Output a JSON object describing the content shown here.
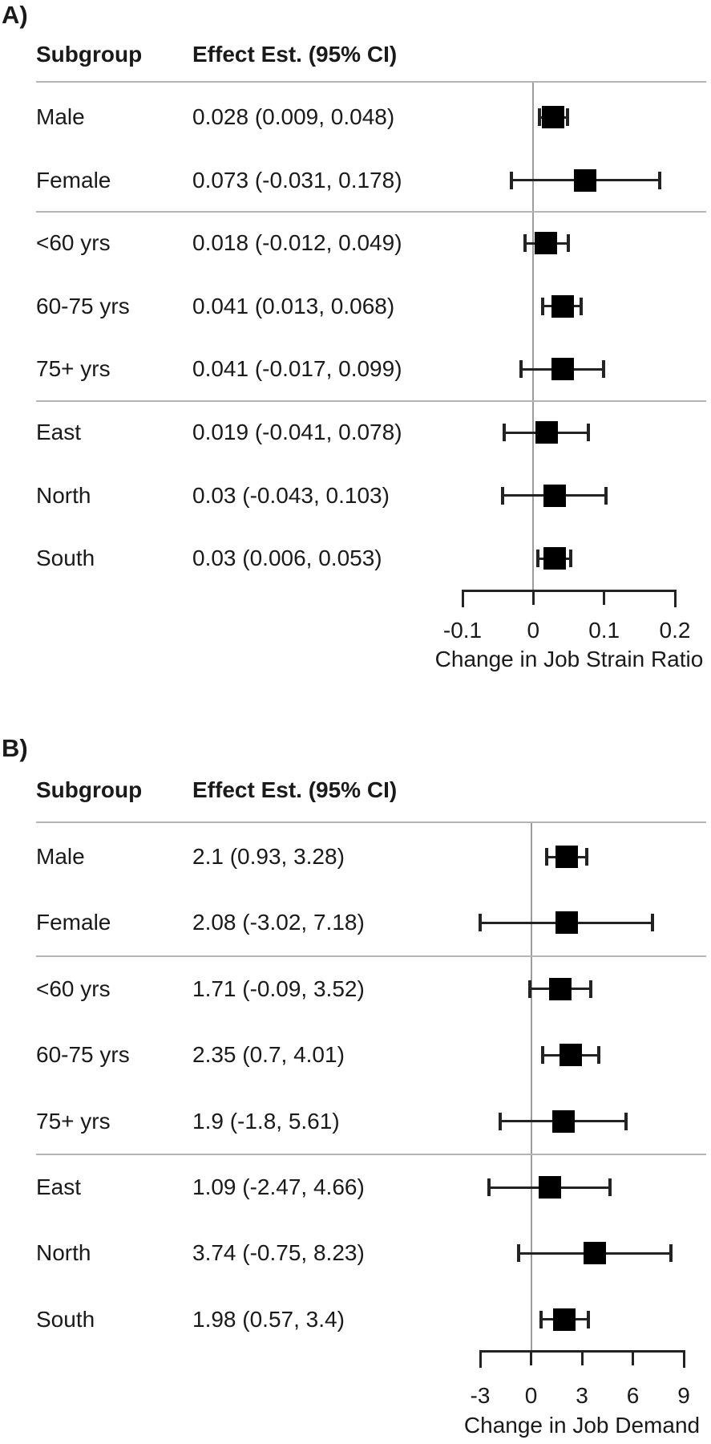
{
  "chart_data": [
    {
      "type": "forest",
      "panel_label": "A)",
      "columns": [
        "Subgroup",
        "Effect Est. (95% CI)"
      ],
      "rows": [
        {
          "label": "Male",
          "effect_text": "0.028 (0.009, 0.048)",
          "est": 0.028,
          "lo": 0.009,
          "hi": 0.048
        },
        {
          "label": "Female",
          "effect_text": "0.073 (-0.031, 0.178)",
          "est": 0.073,
          "lo": -0.031,
          "hi": 0.178
        },
        {
          "label": "<60 yrs",
          "effect_text": "0.018 (-0.012, 0.049)",
          "est": 0.018,
          "lo": -0.012,
          "hi": 0.049
        },
        {
          "label": "60-75 yrs",
          "effect_text": "0.041 (0.013, 0.068)",
          "est": 0.041,
          "lo": 0.013,
          "hi": 0.068
        },
        {
          "label": "75+ yrs",
          "effect_text": "0.041 (-0.017, 0.099)",
          "est": 0.041,
          "lo": -0.017,
          "hi": 0.099
        },
        {
          "label": "East",
          "effect_text": "0.019 (-0.041, 0.078)",
          "est": 0.019,
          "lo": -0.041,
          "hi": 0.078
        },
        {
          "label": "North",
          "effect_text": "0.03 (-0.043, 0.103)",
          "est": 0.03,
          "lo": -0.043,
          "hi": 0.103
        },
        {
          "label": "South",
          "effect_text": "0.03 (0.006, 0.053)",
          "est": 0.03,
          "lo": 0.006,
          "hi": 0.053
        }
      ],
      "group_breaks_after": [
        1,
        4
      ],
      "xlim": [
        -0.1,
        0.2
      ],
      "tick_values": [
        -0.1,
        0,
        0.1,
        0.2
      ],
      "tick_labels": [
        "-0.1",
        "0",
        "0.1",
        "0.2"
      ],
      "zero_line": 0,
      "xlabel": "Change in Job Strain Ratio",
      "grid": false,
      "legend": false
    },
    {
      "type": "forest",
      "panel_label": "B)",
      "columns": [
        "Subgroup",
        "Effect Est. (95% CI)"
      ],
      "rows": [
        {
          "label": "Male",
          "effect_text": "2.1 (0.93, 3.28)",
          "est": 2.1,
          "lo": 0.93,
          "hi": 3.28
        },
        {
          "label": "Female",
          "effect_text": "2.08 (-3.02, 7.18)",
          "est": 2.08,
          "lo": -3.02,
          "hi": 7.18
        },
        {
          "label": "<60 yrs",
          "effect_text": "1.71 (-0.09, 3.52)",
          "est": 1.71,
          "lo": -0.09,
          "hi": 3.52
        },
        {
          "label": "60-75 yrs",
          "effect_text": "2.35 (0.7, 4.01)",
          "est": 2.35,
          "lo": 0.7,
          "hi": 4.01
        },
        {
          "label": "75+ yrs",
          "effect_text": "1.9 (-1.8, 5.61)",
          "est": 1.9,
          "lo": -1.8,
          "hi": 5.61
        },
        {
          "label": "East",
          "effect_text": "1.09 (-2.47, 4.66)",
          "est": 1.09,
          "lo": -2.47,
          "hi": 4.66
        },
        {
          "label": "North",
          "effect_text": "3.74 (-0.75, 8.23)",
          "est": 3.74,
          "lo": -0.75,
          "hi": 8.23
        },
        {
          "label": "South",
          "effect_text": "1.98 (0.57, 3.4)",
          "est": 1.98,
          "lo": 0.57,
          "hi": 3.4
        }
      ],
      "group_breaks_after": [
        1,
        4
      ],
      "xlim": [
        -3,
        9
      ],
      "tick_values": [
        -3,
        0,
        3,
        6,
        9
      ],
      "tick_labels": [
        "-3",
        "0",
        "3",
        "6",
        "9"
      ],
      "zero_line": 0,
      "xlabel": "Change in Job Demand",
      "grid": false,
      "legend": false
    }
  ]
}
